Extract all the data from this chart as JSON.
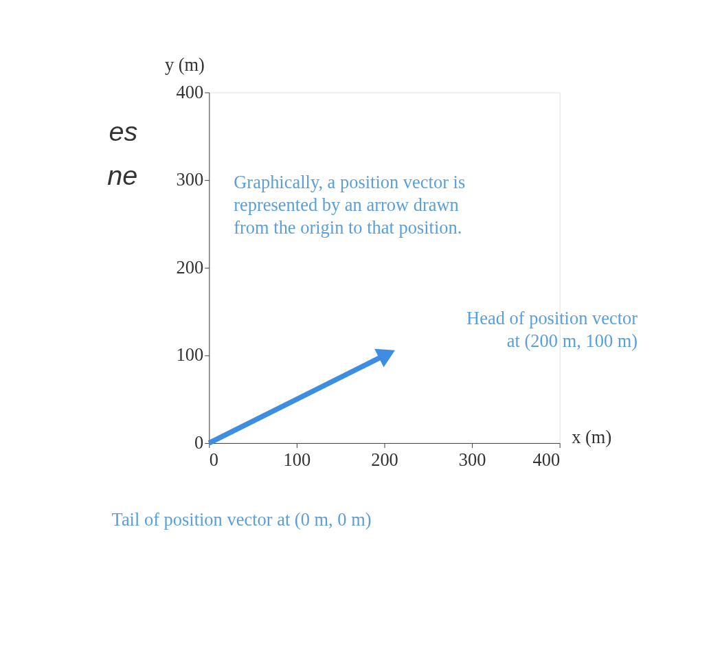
{
  "chart_data": {
    "type": "line",
    "xlabel": "x (m)",
    "ylabel": "y (m)",
    "x": [
      0,
      200
    ],
    "series": [
      {
        "color": "#3d8ee0",
        "values": [
          0,
          100
        ]
      }
    ],
    "xlim": [
      0,
      400
    ],
    "xticks": [
      0,
      100,
      200,
      300,
      400
    ],
    "ylim": [
      0,
      400
    ],
    "yticks": [
      0,
      100,
      200,
      300,
      400
    ],
    "grid": false,
    "line_style": "solid",
    "annotations": [
      "Graphically, a position vector is\nrepresented by an arrow drawn\nfrom the origin to that position.",
      "Head of position vector\nat (200 m, 100 m)",
      "Tail of position vector at (0 m, 0 m)",
      "es",
      "ne"
    ]
  }
}
